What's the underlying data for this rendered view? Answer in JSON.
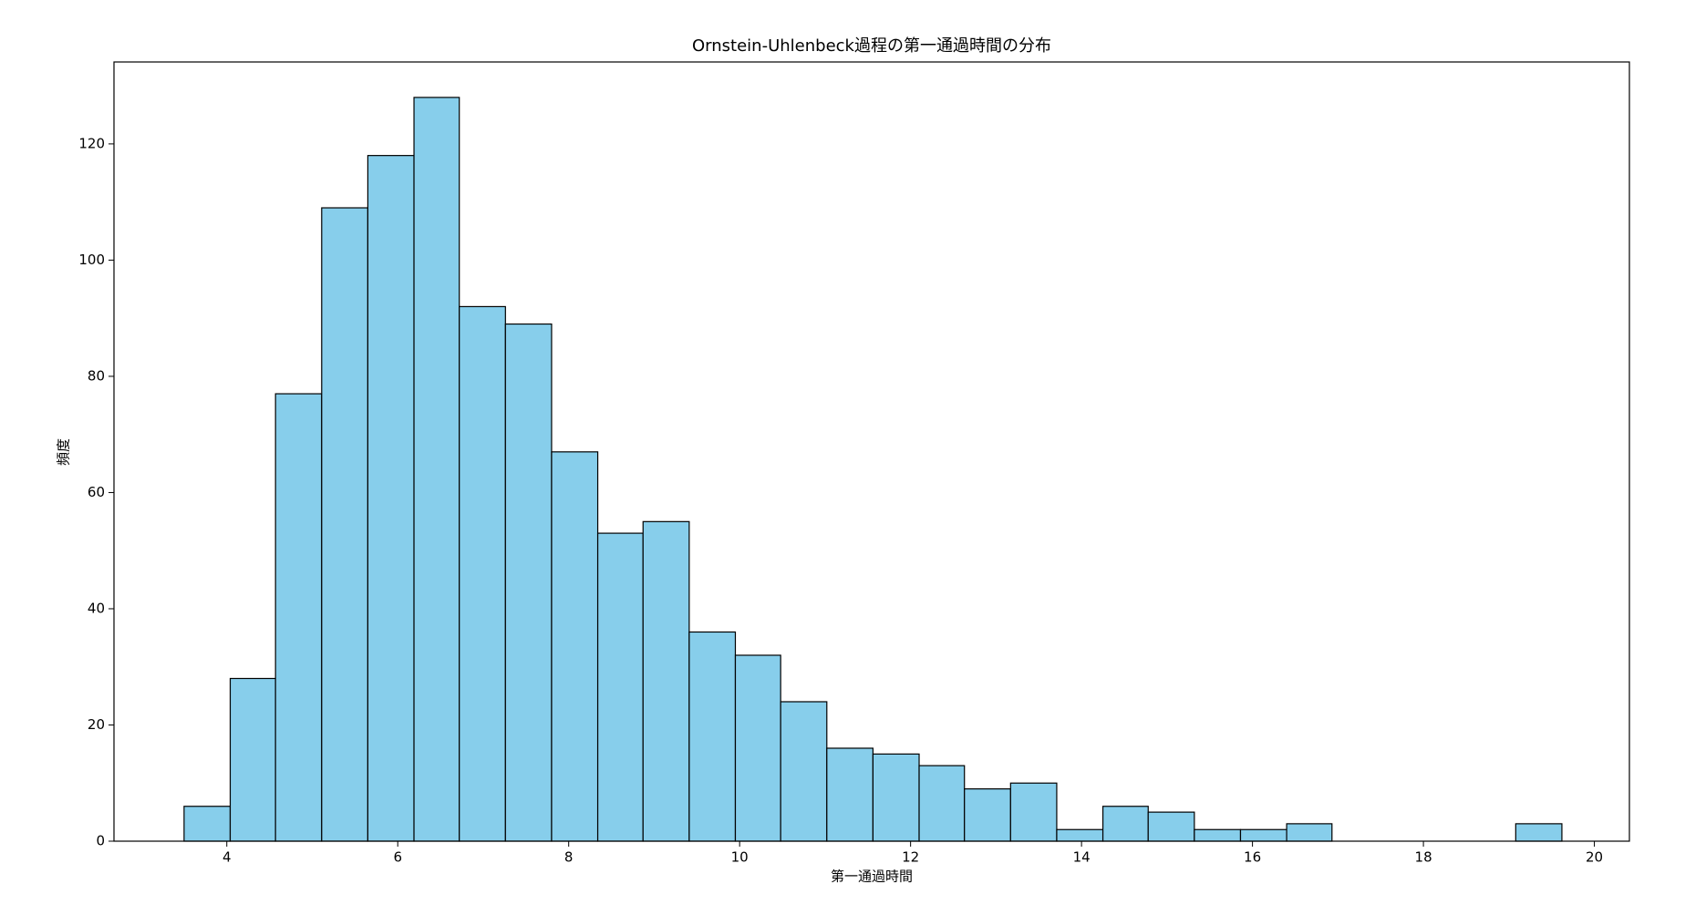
{
  "chart_data": {
    "type": "histogram",
    "title": "Ornstein-Uhlenbeck過程の第一通過時間の分布",
    "x_label": "第一通過時間",
    "y_label": "頻度",
    "bins": [
      3.5,
      4.04,
      4.57,
      5.11,
      5.65,
      6.19,
      6.72,
      7.26,
      7.8,
      8.34,
      8.87,
      9.41,
      9.95,
      10.48,
      11.02,
      11.56,
      12.1,
      12.63,
      13.17,
      13.71,
      14.25,
      14.78,
      15.32,
      15.86,
      16.4,
      16.93,
      17.47,
      18.01,
      18.54,
      19.08,
      19.62
    ],
    "values": [
      6,
      28,
      77,
      109,
      118,
      128,
      92,
      89,
      67,
      53,
      55,
      36,
      32,
      24,
      16,
      15,
      13,
      9,
      10,
      2,
      6,
      5,
      2,
      2,
      3,
      0,
      0,
      0,
      0,
      3
    ],
    "color": "#87ceeb",
    "edge_color": "#000000",
    "xlim": [
      2.68,
      20.41
    ],
    "xticks": [
      4,
      6,
      8,
      10,
      12,
      14,
      16,
      18,
      20
    ],
    "ylim": [
      0,
      134.1
    ],
    "yticks": [
      0,
      20,
      40,
      60,
      80,
      100,
      120
    ]
  }
}
